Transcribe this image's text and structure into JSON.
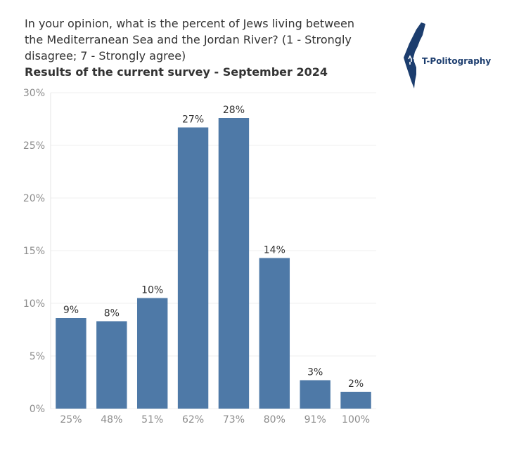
{
  "title": {
    "question": "In your opinion, what is the percent of Jews living between the Mediterranean Sea and the Jordan River? (1 - Strongly disagree; 7 - Strongly agree)",
    "subtitle": "Results of the current survey - September 2024"
  },
  "logo": {
    "text": "T-Politography",
    "icon": "map-of-israel-logo"
  },
  "chart_data": {
    "type": "bar",
    "categories": [
      "25%",
      "48%",
      "51%",
      "62%",
      "73%",
      "80%",
      "91%",
      "100%"
    ],
    "values": [
      8.6,
      8.3,
      10.5,
      26.7,
      27.6,
      14.3,
      2.7,
      1.6
    ],
    "data_labels": [
      "9%",
      "8%",
      "10%",
      "27%",
      "28%",
      "14%",
      "3%",
      "2%"
    ],
    "ylim": [
      0,
      30
    ],
    "yticks": [
      0,
      5,
      10,
      15,
      20,
      25,
      30
    ],
    "ytick_labels": [
      "0%",
      "5%",
      "10%",
      "15%",
      "20%",
      "25%",
      "30%"
    ],
    "grid": true,
    "bar_color": "#4e79a7",
    "xlabel": "",
    "ylabel": ""
  }
}
